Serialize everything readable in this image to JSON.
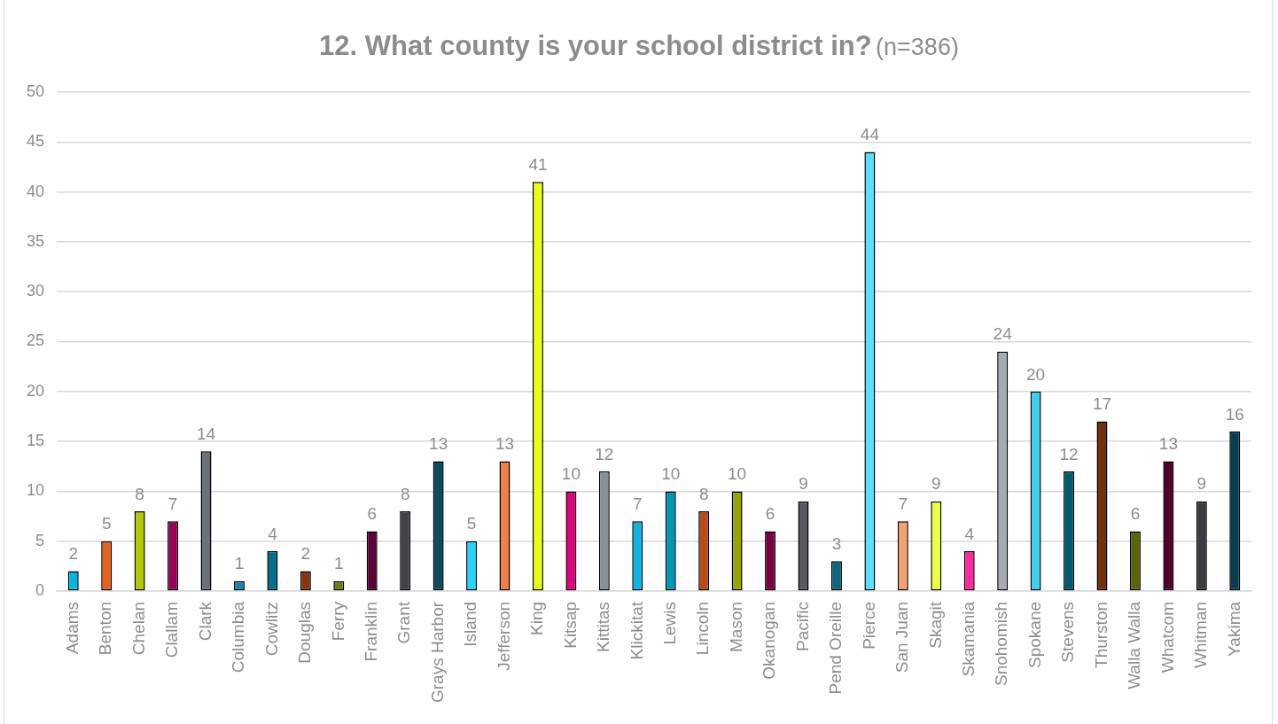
{
  "chart_data": {
    "type": "bar",
    "title": "12. What county is your school district in?",
    "subtitle": "(n=386)",
    "categories": [
      "Adams",
      "Benton",
      "Chelan",
      "Clallam",
      "Clark",
      "Columbia",
      "Cowlitz",
      "Douglas",
      "Ferry",
      "Franklin",
      "Grant",
      "Grays Harbor",
      "Island",
      "Jefferson",
      "King",
      "Kitsap",
      "Kittitas",
      "Klickitat",
      "Lewis",
      "Lincoln",
      "Mason",
      "Okanogan",
      "Pacific",
      "Pend Oreille",
      "Pierce",
      "San Juan",
      "Skagit",
      "Skamania",
      "Snohomish",
      "Spokane",
      "Stevens",
      "Thurston",
      "Walla Walla",
      "Whatcom",
      "Whitman",
      "Yakima"
    ],
    "values": [
      2,
      5,
      8,
      7,
      14,
      1,
      4,
      2,
      1,
      6,
      8,
      13,
      5,
      13,
      41,
      10,
      12,
      7,
      10,
      8,
      10,
      6,
      9,
      3,
      44,
      7,
      9,
      4,
      24,
      20,
      12,
      17,
      6,
      13,
      9,
      16
    ],
    "colors": [
      "#00b8e6",
      "#e8601c",
      "#b5c900",
      "#9a0057",
      "#6b7178",
      "#1188aa",
      "#036f88",
      "#8b3510",
      "#6e7d10",
      "#5e0038",
      "#404448",
      "#0a4d5f",
      "#25d5ff",
      "#f08048",
      "#e8ff10",
      "#e0007f",
      "#8a9096",
      "#10b4e0",
      "#0096b8",
      "#b84c14",
      "#98a400",
      "#780040",
      "#565b62",
      "#0b6680",
      "#58e0ff",
      "#f4a070",
      "#ecff40",
      "#ff28a0",
      "#a8acb2",
      "#3cd0f0",
      "#005a70",
      "#72300c",
      "#5a6400",
      "#500028",
      "#383b40",
      "#053f50"
    ],
    "ylim": [
      0,
      50
    ],
    "yticks": [
      0,
      5,
      10,
      15,
      20,
      25,
      30,
      35,
      40,
      45,
      50
    ],
    "grid": "y",
    "data_labels": true
  }
}
